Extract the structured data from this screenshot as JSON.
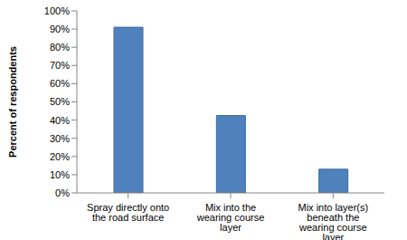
{
  "chart_data": {
    "type": "bar",
    "categories": [
      "Spray directly onto the road surface",
      "Mix into the wearing course layer",
      "Mix into layer(s) beneath the wearing course layer"
    ],
    "values": [
      91,
      42.5,
      13
    ],
    "color": "#4f81bd",
    "y_label": "Percent of respondents",
    "ylim": [
      0,
      100
    ],
    "yticks": [
      {
        "value": 0,
        "label": "0%"
      },
      {
        "value": 10,
        "label": "10%"
      },
      {
        "value": 20,
        "label": "20%"
      },
      {
        "value": 30,
        "label": "30%"
      },
      {
        "value": 40,
        "label": "40%"
      },
      {
        "value": 50,
        "label": "50%"
      },
      {
        "value": 60,
        "label": "60%"
      },
      {
        "value": 70,
        "label": "70%"
      },
      {
        "value": 80,
        "label": "80%"
      },
      {
        "value": 90,
        "label": "90%"
      },
      {
        "value": 100,
        "label": "100%"
      }
    ],
    "grid": false
  }
}
